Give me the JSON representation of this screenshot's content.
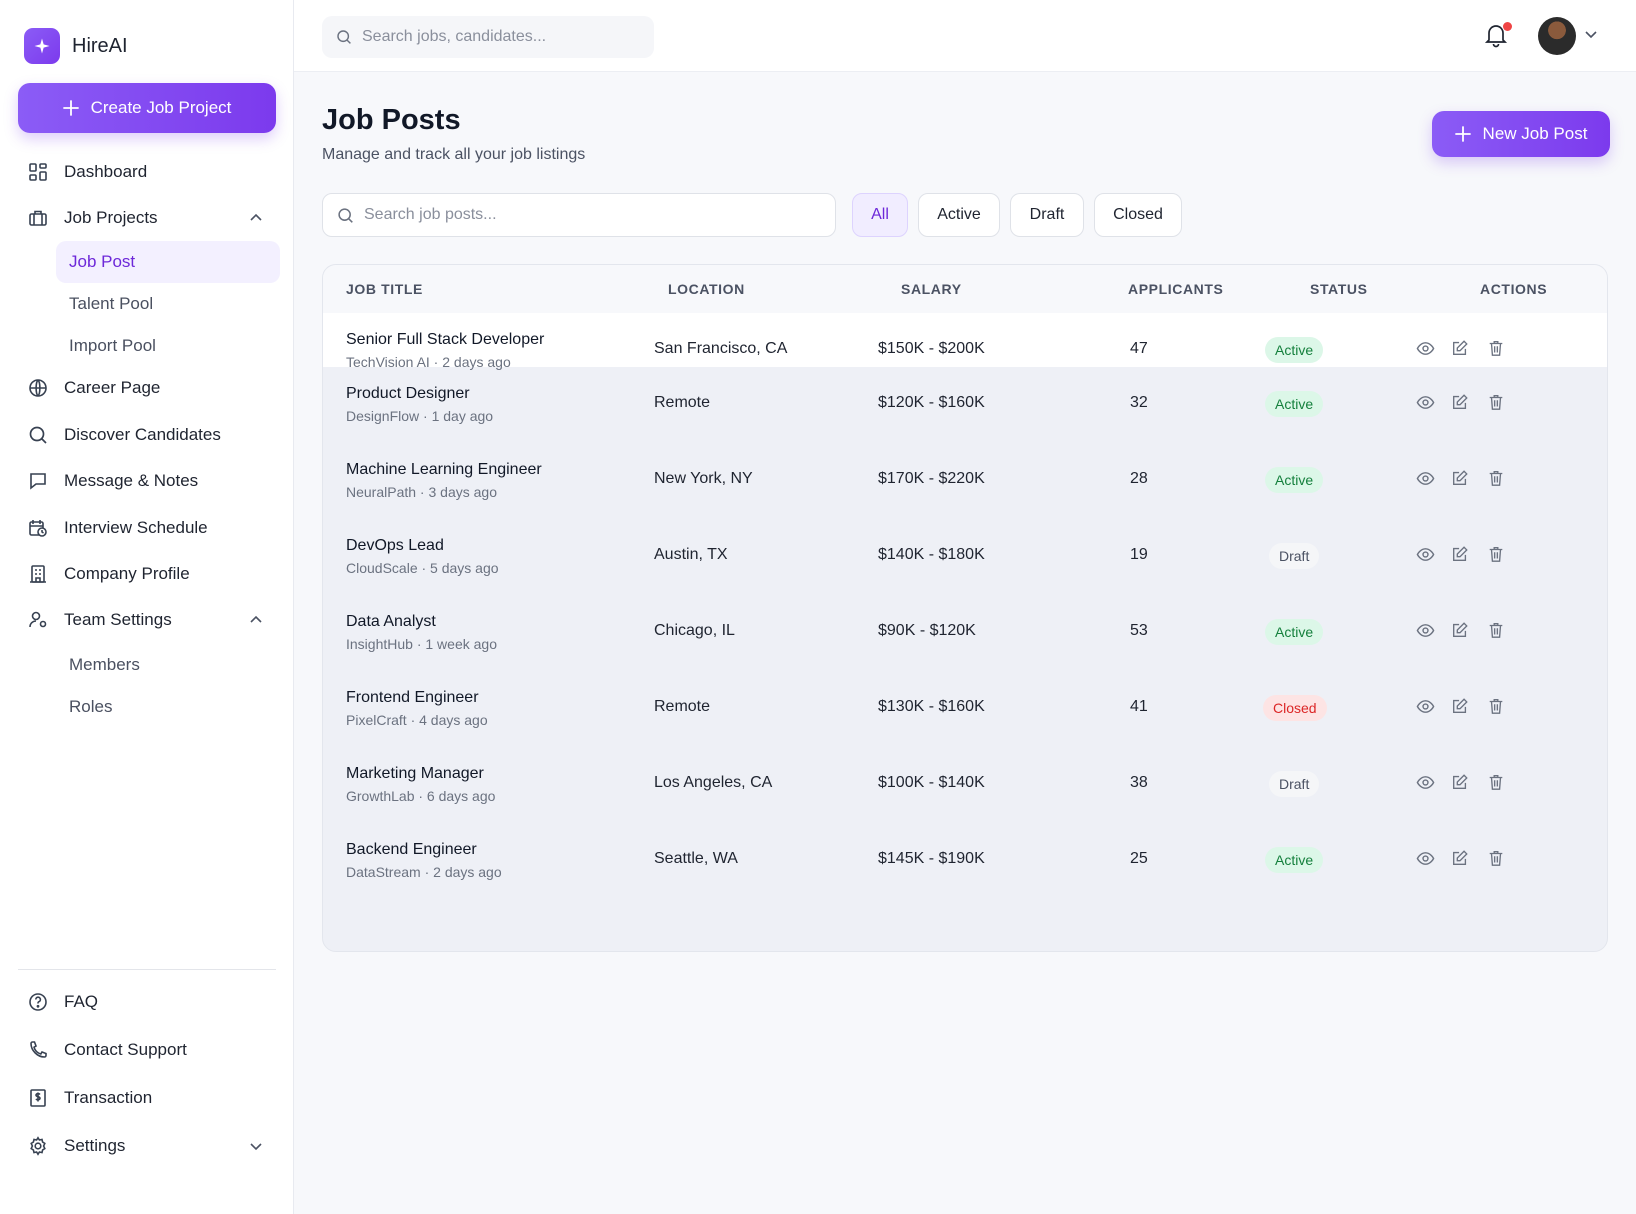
{
  "app": {
    "name": "HireAI"
  },
  "sidebar": {
    "create_button": "Create Job Project",
    "items": [
      {
        "label": "Dashboard",
        "icon": "grid-icon"
      },
      {
        "label": "Job Projects",
        "icon": "briefcase-icon"
      },
      {
        "label": "Career Page",
        "icon": "globe-icon"
      },
      {
        "label": "Discover Candidates",
        "icon": "search-icon"
      },
      {
        "label": "Message & Notes",
        "icon": "message-icon"
      },
      {
        "label": "Interview Schedule",
        "icon": "calendar-clock-icon"
      },
      {
        "label": "Company Profile",
        "icon": "building-icon"
      },
      {
        "label": "Team Settings",
        "icon": "user-gear-icon"
      }
    ],
    "job_projects_sub": [
      "Job Post",
      "Talent Pool",
      "Import Pool"
    ],
    "team_settings_sub": [
      "Members",
      "Roles"
    ],
    "footer_items": [
      {
        "label": "FAQ",
        "icon": "help-circle-icon"
      },
      {
        "label": "Contact Support",
        "icon": "phone-icon"
      },
      {
        "label": "Transaction",
        "icon": "dollar-receipt-icon"
      },
      {
        "label": "Settings",
        "icon": "gear-icon"
      }
    ]
  },
  "topbar": {
    "search_placeholder": "Search jobs, candidates..."
  },
  "page": {
    "title": "Job Posts",
    "subtitle": "Manage and track all your job listings",
    "new_button": "New Job Post",
    "search_placeholder": "Search job posts...",
    "filters": [
      "All",
      "Active",
      "Draft",
      "Closed"
    ],
    "active_filter": "All"
  },
  "table": {
    "headers": [
      "JOB TITLE",
      "LOCATION",
      "SALARY",
      "APPLICANTS",
      "STATUS",
      "ACTIONS"
    ],
    "rows": [
      {
        "title": "Senior Full Stack Developer",
        "meta": "TechVision AI · 2 days ago",
        "location": "San Francisco, CA",
        "salary": "$150K - $200K",
        "applicants": "47",
        "status": "Active"
      },
      {
        "title": "Product Designer",
        "meta": "DesignFlow · 1 day ago",
        "location": "Remote",
        "salary": "$120K - $160K",
        "applicants": "32",
        "status": "Active"
      },
      {
        "title": "Machine Learning Engineer",
        "meta": "NeuralPath · 3 days ago",
        "location": "New York, NY",
        "salary": "$170K - $220K",
        "applicants": "28",
        "status": "Active"
      },
      {
        "title": "DevOps Lead",
        "meta": "CloudScale · 5 days ago",
        "location": "Austin, TX",
        "salary": "$140K - $180K",
        "applicants": "19",
        "status": "Draft"
      },
      {
        "title": "Data Analyst",
        "meta": "InsightHub · 1 week ago",
        "location": "Chicago, IL",
        "salary": "$90K - $120K",
        "applicants": "53",
        "status": "Active"
      },
      {
        "title": "Frontend Engineer",
        "meta": "PixelCraft · 4 days ago",
        "location": "Remote",
        "salary": "$130K - $160K",
        "applicants": "41",
        "status": "Closed"
      },
      {
        "title": "Marketing Manager",
        "meta": "GrowthLab · 6 days ago",
        "location": "Los Angeles, CA",
        "salary": "$100K - $140K",
        "applicants": "38",
        "status": "Draft"
      },
      {
        "title": "Backend Engineer",
        "meta": "DataStream · 2 days ago",
        "location": "Seattle, WA",
        "salary": "$145K - $190K",
        "applicants": "25",
        "status": "Active"
      }
    ]
  },
  "colors": {
    "accent": "#7c3aed",
    "active_badge": "#15803d",
    "closed_badge": "#dc2626"
  }
}
